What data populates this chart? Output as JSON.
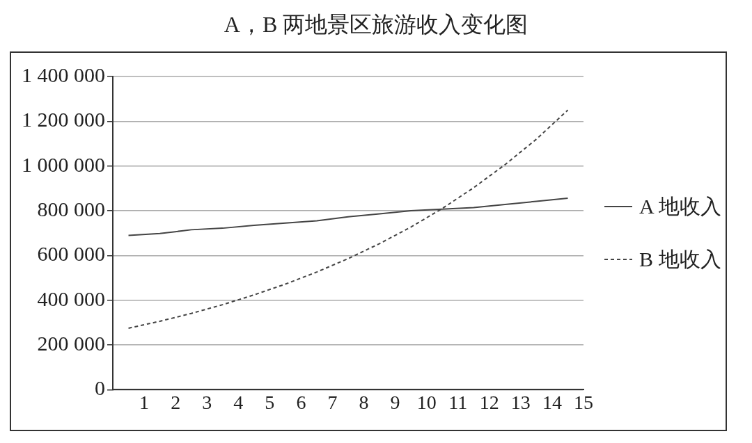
{
  "chart_data": {
    "type": "line",
    "title": "A，B 两地景区旅游收入变化图",
    "x": [
      0.5,
      1.5,
      2.5,
      3.5,
      4.5,
      5.5,
      6.5,
      7.5,
      8.5,
      9.5,
      10.5,
      11.5,
      12.5,
      13.5,
      14.5
    ],
    "series": [
      {
        "name": "A 地收入",
        "color": "#444444",
        "line_style": "solid",
        "values": [
          690000,
          698000,
          715000,
          722000,
          735000,
          745000,
          755000,
          773000,
          786000,
          800000,
          807000,
          814000,
          828000,
          842000,
          856000
        ]
      },
      {
        "name": "B 地收入",
        "color": "#444444",
        "line_style": "dashed",
        "values": [
          275000,
          306000,
          341000,
          380000,
          424000,
          472000,
          526000,
          586000,
          653000,
          727000,
          810000,
          903000,
          1006000,
          1120000,
          1250000
        ]
      }
    ],
    "xlim": [
      0,
      15
    ],
    "xticks": [
      1,
      2,
      3,
      4,
      5,
      6,
      7,
      8,
      9,
      10,
      11,
      12,
      13,
      14,
      15
    ],
    "ylim": [
      0,
      1400000
    ],
    "yticks": [
      0,
      {
        "value": 200000,
        "label": "200 000"
      },
      {
        "value": 400000,
        "label": "400 000"
      },
      {
        "value": 600000,
        "label": "600 000"
      },
      {
        "value": 800000,
        "label": "800 000"
      },
      {
        "value": 1000000,
        "label": "1 000 000"
      },
      {
        "value": 1200000,
        "label": "1 200 000"
      },
      {
        "value": 1400000,
        "label": "1 400 000"
      }
    ],
    "grid": "y",
    "legend": "right",
    "marker": "none"
  }
}
